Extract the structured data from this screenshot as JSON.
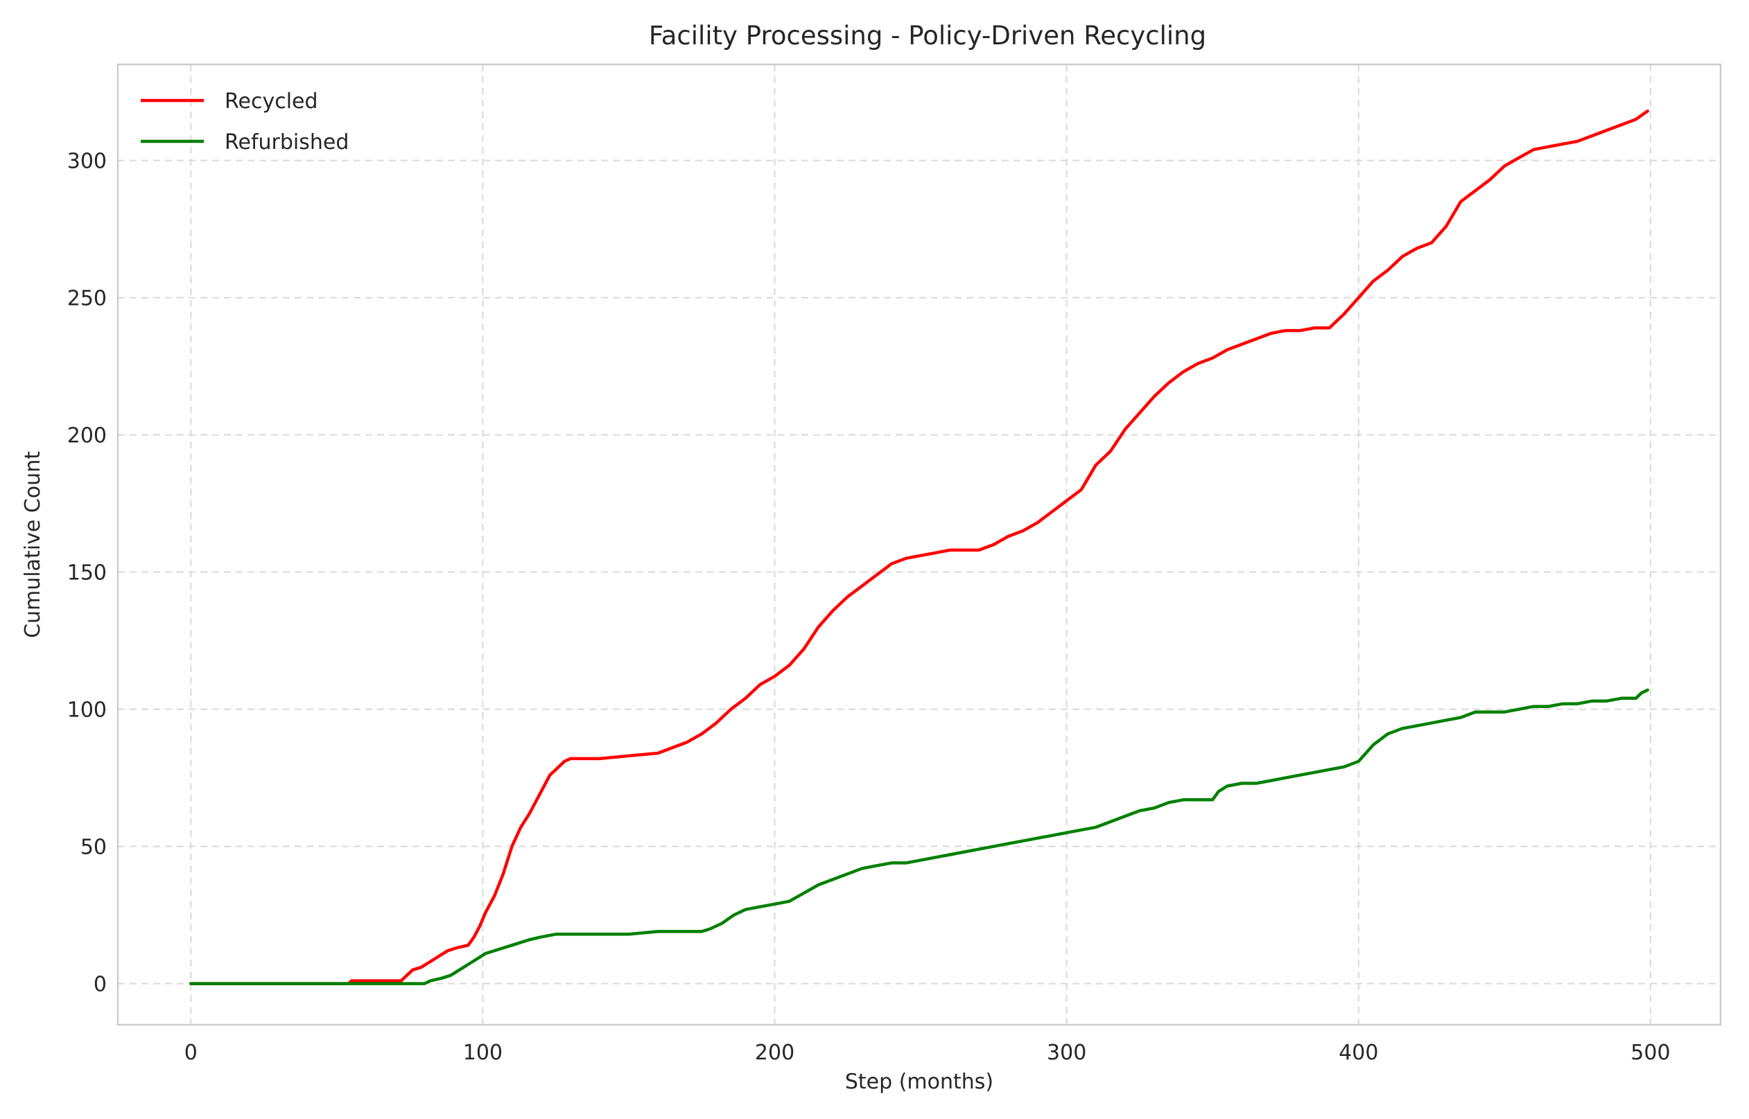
{
  "chart_data": {
    "type": "line",
    "title": "Facility Processing - Policy-Driven Recycling",
    "xlabel": "Step (months)",
    "ylabel": "Cumulative Count",
    "xlim": [
      -25,
      524
    ],
    "ylim": [
      -15,
      335
    ],
    "xticks": [
      0,
      100,
      200,
      300,
      400,
      500
    ],
    "yticks": [
      0,
      50,
      100,
      150,
      200,
      250,
      300
    ],
    "grid": true,
    "legend_position": "top-left",
    "series": [
      {
        "name": "Recycled",
        "color": "#ff0000",
        "x": [
          0,
          54,
          55,
          72,
          74,
          76,
          79,
          82,
          85,
          88,
          91,
          95,
          97,
          99,
          101,
          104,
          107,
          110,
          113,
          116,
          120,
          123,
          126,
          128,
          130,
          132,
          140,
          150,
          160,
          165,
          170,
          175,
          180,
          185,
          190,
          195,
          200,
          205,
          210,
          215,
          220,
          225,
          230,
          235,
          240,
          245,
          250,
          255,
          260,
          270,
          275,
          280,
          285,
          290,
          295,
          300,
          305,
          310,
          315,
          320,
          325,
          330,
          335,
          340,
          345,
          350,
          355,
          360,
          365,
          370,
          375,
          380,
          385,
          390,
          395,
          400,
          405,
          410,
          415,
          420,
          425,
          430,
          435,
          440,
          445,
          450,
          455,
          460,
          465,
          470,
          475,
          480,
          485,
          490,
          495,
          499
        ],
        "y": [
          0,
          0,
          1,
          1,
          3,
          5,
          6,
          8,
          10,
          12,
          13,
          14,
          17,
          21,
          26,
          32,
          40,
          50,
          57,
          62,
          70,
          76,
          79,
          81,
          82,
          82,
          82,
          83,
          84,
          86,
          88,
          91,
          95,
          100,
          104,
          109,
          112,
          116,
          122,
          130,
          136,
          141,
          145,
          149,
          153,
          155,
          156,
          157,
          158,
          158,
          160,
          163,
          165,
          168,
          172,
          176,
          180,
          189,
          194,
          202,
          208,
          214,
          219,
          223,
          226,
          228,
          231,
          233,
          235,
          237,
          238,
          238,
          239,
          239,
          244,
          250,
          256,
          260,
          265,
          268,
          270,
          276,
          285,
          289,
          293,
          298,
          301,
          304,
          305,
          306,
          307,
          309,
          311,
          313,
          315,
          318
        ]
      },
      {
        "name": "Refurbished",
        "color": "#008000",
        "x": [
          0,
          80,
          82,
          86,
          89,
          92,
          95,
          98,
          101,
          104,
          107,
          110,
          113,
          116,
          120,
          125,
          130,
          140,
          150,
          160,
          170,
          175,
          178,
          182,
          186,
          190,
          195,
          200,
          205,
          210,
          215,
          220,
          225,
          230,
          235,
          240,
          245,
          250,
          255,
          260,
          265,
          270,
          275,
          280,
          285,
          290,
          295,
          300,
          305,
          310,
          315,
          320,
          325,
          330,
          335,
          340,
          345,
          350,
          352,
          355,
          360,
          365,
          370,
          375,
          380,
          385,
          390,
          395,
          400,
          405,
          410,
          415,
          420,
          425,
          430,
          435,
          440,
          445,
          450,
          455,
          460,
          465,
          470,
          475,
          480,
          485,
          490,
          495,
          497,
          499
        ],
        "y": [
          0,
          0,
          1,
          2,
          3,
          5,
          7,
          9,
          11,
          12,
          13,
          14,
          15,
          16,
          17,
          18,
          18,
          18,
          18,
          19,
          19,
          19,
          20,
          22,
          25,
          27,
          28,
          29,
          30,
          33,
          36,
          38,
          40,
          42,
          43,
          44,
          44,
          45,
          46,
          47,
          48,
          49,
          50,
          51,
          52,
          53,
          54,
          55,
          56,
          57,
          59,
          61,
          63,
          64,
          66,
          67,
          67,
          67,
          70,
          72,
          73,
          73,
          74,
          75,
          76,
          77,
          78,
          79,
          81,
          87,
          91,
          93,
          94,
          95,
          96,
          97,
          99,
          99,
          99,
          100,
          101,
          101,
          102,
          102,
          103,
          103,
          104,
          104,
          106,
          107
        ]
      }
    ]
  }
}
